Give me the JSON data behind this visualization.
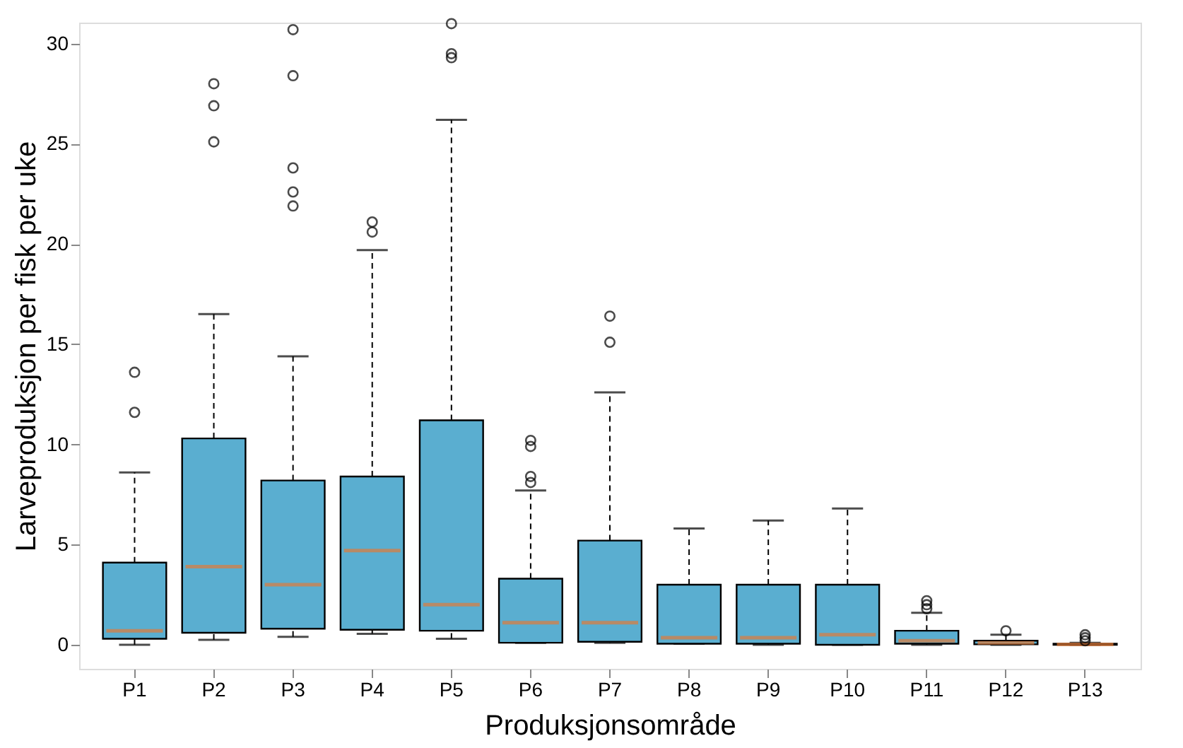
{
  "chart_data": {
    "type": "box",
    "xlabel": "Produksjonsområde",
    "ylabel": "Larveproduksjon per fisk per uke",
    "categories": [
      "P1",
      "P2",
      "P3",
      "P4",
      "P5",
      "P6",
      "P7",
      "P8",
      "P9",
      "P10",
      "P11",
      "P12",
      "P13"
    ],
    "ylim": [
      -1.2,
      31.05
    ],
    "yticks": [
      0,
      5,
      10,
      15,
      20,
      25,
      30
    ],
    "grid": false,
    "series": [
      {
        "color": "#5aaed0",
        "boxes": [
          {
            "low": 0,
            "q1": 0.3,
            "median": 0.7,
            "q3": 4.1,
            "high": 8.6,
            "outliers": [
              11.6,
              13.6
            ]
          },
          {
            "low": 0.25,
            "q1": 0.6,
            "median": 3.9,
            "q3": 10.3,
            "high": 16.5,
            "outliers": [
              25.1,
              26.9,
              28.0
            ]
          },
          {
            "low": 0.4,
            "q1": 0.8,
            "median": 3.0,
            "q3": 8.2,
            "high": 14.4,
            "outliers": [
              21.9,
              22.6,
              23.8,
              28.4,
              30.7
            ]
          },
          {
            "low": 0.55,
            "q1": 0.75,
            "median": 4.7,
            "q3": 8.4,
            "high": 19.7,
            "outliers": [
              20.6,
              21.1
            ]
          },
          {
            "low": 0.3,
            "q1": 0.7,
            "median": 2.0,
            "q3": 11.2,
            "high": 26.2,
            "outliers": [
              29.3,
              29.5,
              31.0
            ]
          },
          {
            "low": 0.1,
            "q1": 0.1,
            "median": 1.1,
            "q3": 3.3,
            "high": 7.7,
            "outliers": [
              8.1,
              8.4,
              9.9,
              10.2
            ]
          },
          {
            "low": 0.1,
            "q1": 0.15,
            "median": 1.1,
            "q3": 5.2,
            "high": 12.6,
            "outliers": [
              15.1,
              16.4
            ]
          },
          {
            "low": 0.05,
            "q1": 0.05,
            "median": 0.35,
            "q3": 3.0,
            "high": 5.8
          },
          {
            "low": 0,
            "q1": 0.05,
            "median": 0.35,
            "q3": 3.0,
            "high": 6.2
          },
          {
            "low": 0,
            "q1": 0,
            "median": 0.5,
            "q3": 3.0,
            "high": 6.8
          },
          {
            "low": 0,
            "q1": 0.05,
            "median": 0.2,
            "q3": 0.7,
            "high": 1.6,
            "outliers": [
              1.8,
              2.0,
              2.2
            ]
          },
          {
            "low": 0,
            "q1": 0.02,
            "median": 0.1,
            "q3": 0.2,
            "high": 0.5,
            "outliers": [
              0.7
            ]
          },
          {
            "low": 0,
            "q1": 0,
            "median": 0.02,
            "q3": 0.05,
            "high": 0.1,
            "outliers": [
              0.2,
              0.35,
              0.5
            ]
          }
        ]
      }
    ]
  }
}
